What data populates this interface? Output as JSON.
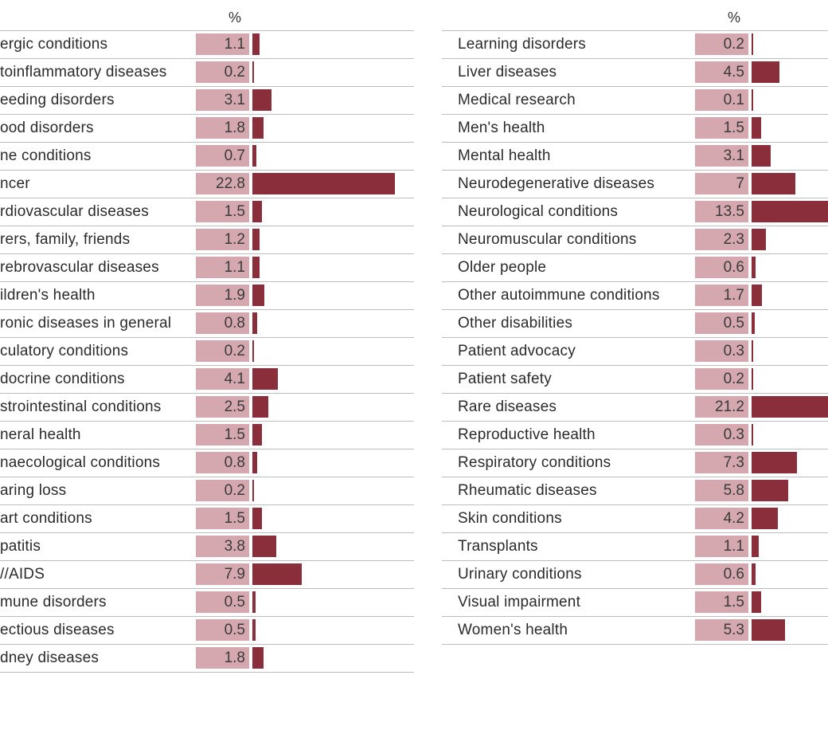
{
  "chart_data": [
    {
      "type": "bar",
      "orientation": "horizontal",
      "value_header": "%",
      "categories": [
        "Allergic conditions",
        "Autoinflammatory diseases",
        "Bleeding disorders",
        "Blood disorders",
        "Bone conditions",
        "Cancer",
        "Cardiovascular diseases",
        "Carers, family, friends",
        "Cerebrovascular diseases",
        "Children's health",
        "Chronic diseases in general",
        "Circulatory conditions",
        "Endocrine conditions",
        "Gastrointestinal conditions",
        "General health",
        "Gynaecological conditions",
        "Hearing loss",
        "Heart conditions",
        "Hepatitis",
        "HIV/AIDS",
        "Immune disorders",
        "Infectious diseases",
        "Kidney diseases"
      ],
      "displayed_labels": [
        "ergic conditions",
        "toinflammatory diseases",
        "eeding disorders",
        "ood disorders",
        "ne conditions",
        "ncer",
        "rdiovascular diseases",
        "rers, family, friends",
        "rebrovascular diseases",
        "ildren's health",
        "ronic diseases in general",
        "culatory conditions",
        "docrine conditions",
        "strointestinal conditions",
        "neral health",
        "naecological conditions",
        "aring loss",
        "art conditions",
        "patitis",
        "//AIDS",
        "mune disorders",
        "ectious diseases",
        "dney diseases"
      ],
      "values": [
        1.1,
        0.2,
        3.1,
        1.8,
        0.7,
        22.8,
        1.5,
        1.2,
        1.1,
        1.9,
        0.8,
        0.2,
        4.1,
        2.5,
        1.5,
        0.8,
        0.2,
        1.5,
        3.8,
        7.9,
        0.5,
        0.5,
        1.8
      ],
      "value_labels": [
        "1.1",
        "0.2",
        "3.1",
        "1.8",
        "0.7",
        "22.8",
        "1.5",
        "1.2",
        "1.1",
        "1.9",
        "0.8",
        "0.2",
        "4.1",
        "2.5",
        "1.5",
        "0.8",
        "0.2",
        "1.5",
        "3.8",
        "7.9",
        "0.5",
        "0.5",
        "1.8"
      ],
      "bar_color": "#8b2e3c",
      "label_box_color": "#d4a8ae"
    },
    {
      "type": "bar",
      "orientation": "horizontal",
      "value_header": "%",
      "categories": [
        "Learning disorders",
        "Liver diseases",
        "Medical research",
        "Men's health",
        "Mental health",
        "Neurodegenerative diseases",
        "Neurological conditions",
        "Neuromuscular conditions",
        "Older people",
        "Other autoimmune conditions",
        "Other disabilities",
        "Patient advocacy",
        "Patient safety",
        "Rare diseases",
        "Reproductive health",
        "Respiratory conditions",
        "Rheumatic diseases",
        "Skin conditions",
        "Transplants",
        "Urinary conditions",
        "Visual impairment",
        "Women's health"
      ],
      "displayed_labels": [
        "Learning disorders",
        "Liver diseases",
        "Medical research",
        "Men's health",
        "Mental health",
        "Neurodegenerative diseases",
        "Neurological conditions",
        "Neuromuscular conditions",
        "Older people",
        "Other autoimmune conditions",
        "Other disabilities",
        "Patient advocacy",
        "Patient safety",
        "Rare diseases",
        "Reproductive health",
        "Respiratory conditions",
        "Rheumatic diseases",
        "Skin conditions",
        "Transplants",
        "Urinary conditions",
        "Visual impairment",
        "Women's health"
      ],
      "values": [
        0.2,
        4.5,
        0.1,
        1.5,
        3.1,
        7,
        13.5,
        2.3,
        0.6,
        1.7,
        0.5,
        0.3,
        0.2,
        21.2,
        0.3,
        7.3,
        5.8,
        4.2,
        1.1,
        0.6,
        1.5,
        5.3
      ],
      "value_labels": [
        "0.2",
        "4.5",
        "0.1",
        "1.5",
        "3.1",
        "7",
        "13.5",
        "2.3",
        "0.6",
        "1.7",
        "0.5",
        "0.3",
        "0.2",
        "21.2",
        "0.3",
        "7.3",
        "5.8",
        "4.2",
        "1.1",
        "0.6",
        "1.5",
        "5.3"
      ],
      "bar_color": "#8b2e3c",
      "label_box_color": "#d4a8ae"
    }
  ]
}
